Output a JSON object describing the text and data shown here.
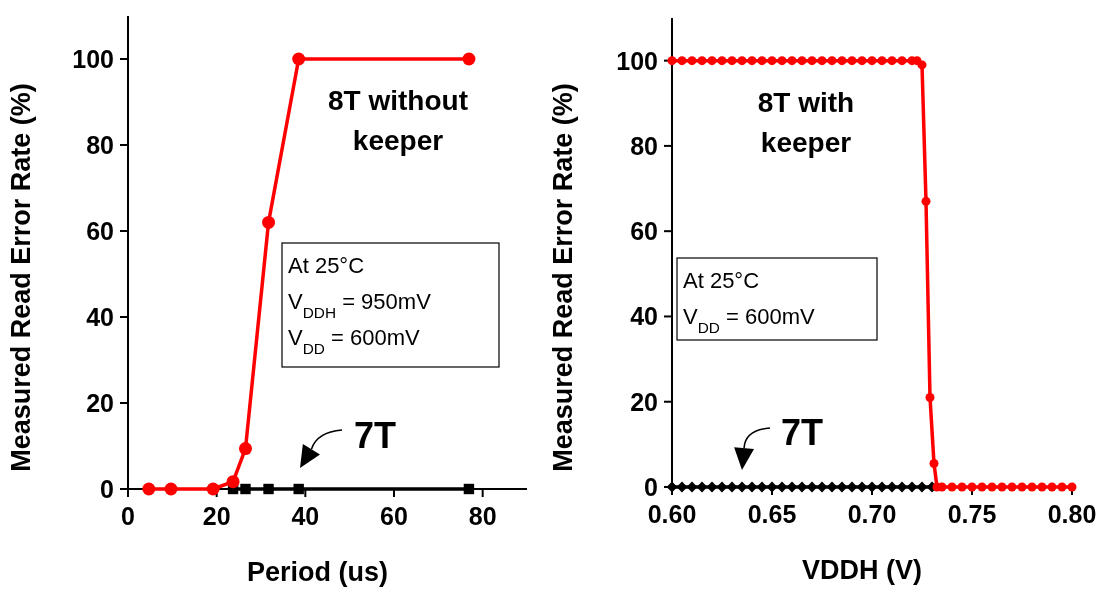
{
  "chart_data": [
    {
      "type": "line",
      "xlabel": "Period (us)",
      "ylabel": "Measured Read Error Rate (%)",
      "xlim": [
        0,
        90
      ],
      "ylim": [
        0,
        110
      ],
      "xticks": [
        0,
        20,
        40,
        60,
        80
      ],
      "yticks": [
        0,
        20,
        40,
        60,
        80,
        100
      ],
      "series": [
        {
          "name": "7T",
          "color": "#000000",
          "marker": "square",
          "x": [
            23.7,
            26.5,
            31.7,
            38.5,
            76.9
          ],
          "values": [
            0,
            0,
            0,
            0,
            0
          ]
        },
        {
          "name": "8T without keeper",
          "color": "#ff0000",
          "marker": "circle",
          "x": [
            4.7,
            9.7,
            19.2,
            23.7,
            26.5,
            31.7,
            38.5,
            76.9
          ],
          "values": [
            0,
            0,
            0,
            1.7,
            9.4,
            62,
            100,
            100
          ]
        }
      ],
      "annotations": [
        "At 25°C\nV$_{DDH}$ = 950mV\nV$_{DD}$ = 600mV"
      ]
    },
    {
      "type": "line",
      "xlabel": "VDDH (V)",
      "ylabel": "Measured Read Error Rate (%)",
      "xlim": [
        0.6,
        0.8
      ],
      "ylim": [
        0,
        110
      ],
      "xticks": [
        {
          "value": 0.6,
          "label": "0.60"
        },
        {
          "value": 0.65,
          "label": "0.65"
        },
        {
          "value": 0.7,
          "label": "0.70"
        },
        {
          "value": 0.75,
          "label": "0.75"
        },
        {
          "value": 0.8,
          "label": "0.80"
        }
      ],
      "yticks": [
        0,
        20,
        40,
        60,
        80,
        100
      ],
      "series": [
        {
          "name": "7T",
          "color": "#000000",
          "marker": "diamond",
          "x": [
            0.6,
            0.605,
            0.61,
            0.615,
            0.62,
            0.625,
            0.63,
            0.635,
            0.64,
            0.645,
            0.65,
            0.655,
            0.66,
            0.665,
            0.67,
            0.675,
            0.68,
            0.685,
            0.69,
            0.695,
            0.7,
            0.705,
            0.71,
            0.715,
            0.72,
            0.725,
            0.73
          ],
          "values": [
            0,
            0,
            0,
            0,
            0,
            0,
            0,
            0,
            0,
            0,
            0,
            0,
            0,
            0,
            0,
            0,
            0,
            0,
            0,
            0,
            0,
            0,
            0,
            0,
            0,
            0,
            0
          ]
        },
        {
          "name": "8T with keeper",
          "color": "#ff0000",
          "marker": "circle",
          "x": [
            0.6,
            0.605,
            0.61,
            0.615,
            0.62,
            0.625,
            0.63,
            0.635,
            0.64,
            0.645,
            0.65,
            0.655,
            0.66,
            0.665,
            0.67,
            0.675,
            0.68,
            0.685,
            0.69,
            0.695,
            0.7,
            0.705,
            0.71,
            0.715,
            0.72,
            0.7225,
            0.725,
            0.727,
            0.729,
            0.731,
            0.7325,
            0.735,
            0.74,
            0.745,
            0.75,
            0.755,
            0.76,
            0.765,
            0.77,
            0.775,
            0.78,
            0.785,
            0.79,
            0.795,
            0.8
          ],
          "values": [
            100,
            100,
            100,
            100,
            100,
            100,
            100,
            100,
            100,
            100,
            100,
            100,
            100,
            100,
            100,
            100,
            100,
            100,
            100,
            100,
            100,
            100,
            100,
            100,
            100,
            100,
            99,
            67,
            21,
            5.5,
            0,
            0,
            0,
            0,
            0,
            0,
            0,
            0,
            0,
            0,
            0,
            0,
            0,
            0,
            0
          ]
        }
      ],
      "annotations": [
        "At 25°C\nV$_{DD}$ = 600mV"
      ]
    }
  ]
}
